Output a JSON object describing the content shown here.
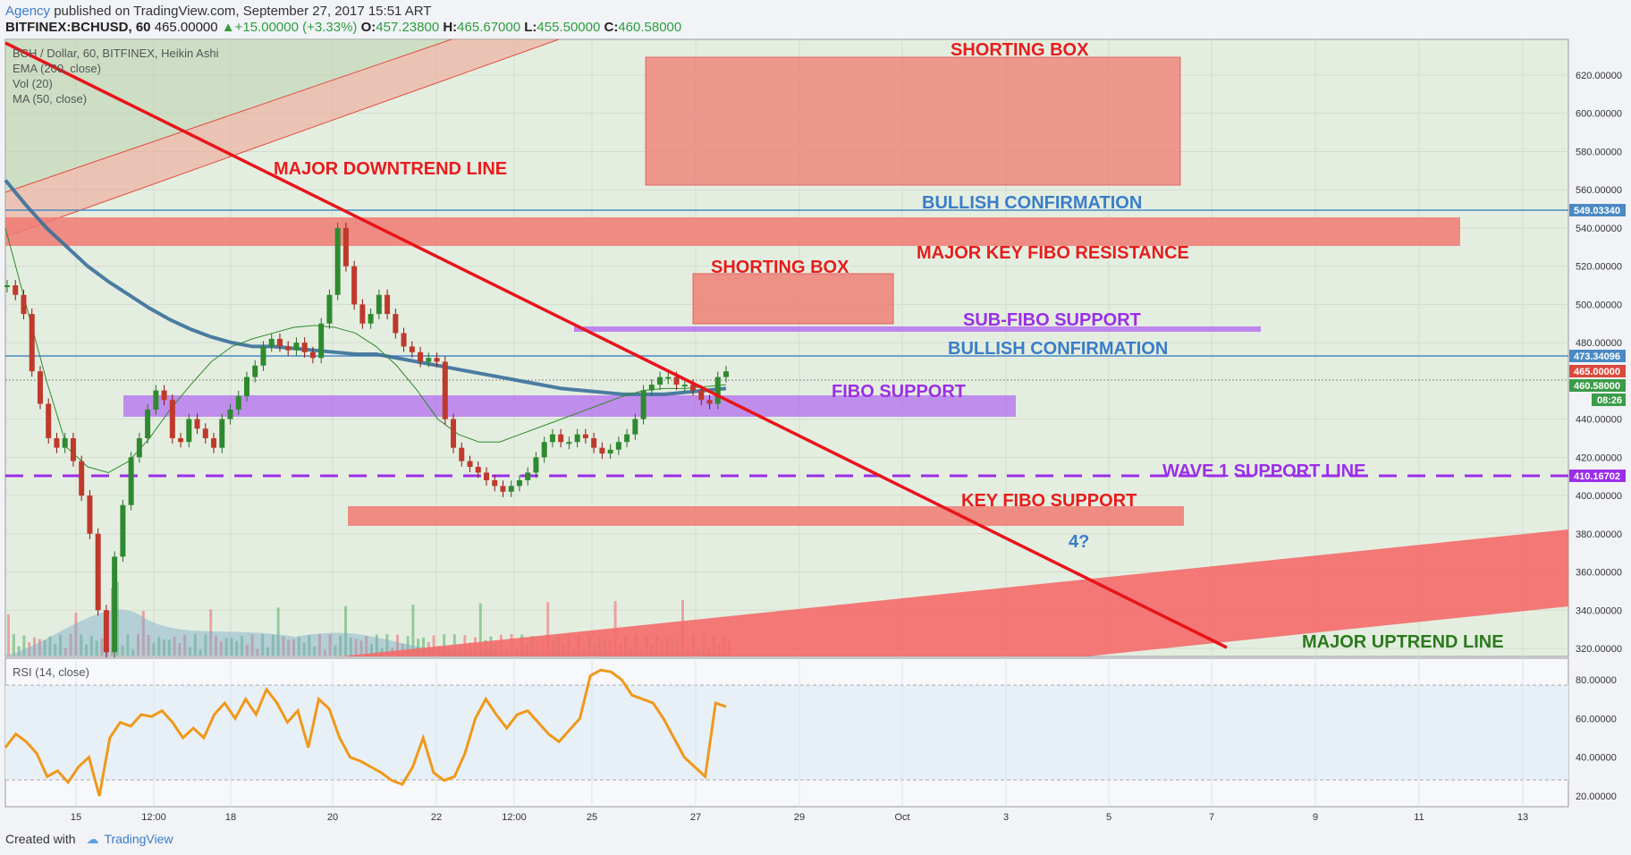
{
  "header": {
    "author": "Agency",
    "published": " published on TradingView.com, September 27, 2017 15:51 ART",
    "symbol": "BITFINEX:BCHUSD, 60",
    "price": "465.00000",
    "change": "+15.00000 (+3.33%)",
    "o_label": "O:",
    "o": "457.23800",
    "h_label": "H:",
    "h": "465.67000",
    "l_label": "L:",
    "l": "455.50000",
    "c_label": "C:",
    "c": "460.58000"
  },
  "legend": {
    "line1": "BCH / Dollar, 60, BITFINEX, Heikin Ashi",
    "line2": "EMA (200, close)",
    "line3": "Vol (20)",
    "line4": "MA (50, close)",
    "rsi": "RSI (14, close)"
  },
  "footer": {
    "created_with": "Created with",
    "brand": "TradingView"
  },
  "colors": {
    "bg_green": "#e4eee0",
    "bg_rsi": "#e8f0f7",
    "red_zone": "#f07a72",
    "red_line": "#e8141b",
    "purple": "#b36cf0",
    "blue_line": "#4a8ac4",
    "ema": "#3a6f9a",
    "ma": "#2f8a2f",
    "rsi_line": "#f0981a",
    "annotation_red": "#e81c1c",
    "annotation_purple": "#9b2ee8",
    "annotation_blue": "#3a7dc9",
    "annotation_green": "#2a7a1c"
  },
  "annotations": {
    "shorting_box_top": "SHORTING BOX",
    "major_downtrend": "MAJOR DOWNTREND LINE",
    "bullish_conf_1": "BULLISH CONFIRMATION",
    "major_key_fibo": "MAJOR KEY FIBO RESISTANCE",
    "shorting_box_mid": "SHORTING BOX",
    "sub_fibo": "SUB-FIBO SUPPORT",
    "bullish_conf_2": "BULLISH CONFIRMATION",
    "fibo_support": "FIBO SUPPORT",
    "wave1": "WAVE 1 SUPPORT LINE",
    "key_fibo_support": "KEY FIBO SUPPORT",
    "question": "4?",
    "major_uptrend": "MAJOR UPTREND LINE"
  },
  "price_tags": {
    "bull_high": "549.03340",
    "bull_low": "473.34096",
    "last_price": "465.00000",
    "close": "460.58000",
    "countdown": "08:26",
    "wave1": "410.16702"
  },
  "chart_data": {
    "type": "line",
    "title": "BCH / Dollar, 60, BITFINEX, Heikin Ashi",
    "y_axis": {
      "ticks": [
        "620.00000",
        "600.00000",
        "580.00000",
        "560.00000",
        "540.00000",
        "520.00000",
        "500.00000",
        "480.00000",
        "440.00000",
        "420.00000",
        "400.00000",
        "380.00000",
        "360.00000",
        "340.00000",
        "320.00000"
      ],
      "ylim": [
        316,
        640
      ]
    },
    "x_axis": {
      "ticks": [
        "15",
        "12:00",
        "18",
        "20",
        "22",
        "12:00",
        "25",
        "27",
        "29",
        "Oct",
        "3",
        "5",
        "7",
        "9",
        "11",
        "13"
      ]
    },
    "rsi_axis": {
      "ticks": [
        "80.00000",
        "60.00000",
        "40.00000",
        "20.00000"
      ],
      "ylim": [
        15,
        90
      ]
    },
    "series": [
      {
        "name": "BCH / Dollar",
        "values": [
          510,
          505,
          495,
          465,
          448,
          430,
          425,
          430,
          418,
          400,
          380,
          340,
          318,
          368,
          395,
          420,
          430,
          445,
          455,
          450,
          430,
          428,
          440,
          435,
          430,
          425,
          440,
          445,
          452,
          462,
          468,
          478,
          482,
          478,
          476,
          480,
          475,
          472,
          490,
          505,
          540,
          520,
          500,
          490,
          495,
          505,
          495,
          485,
          478,
          475,
          470,
          472,
          470,
          440,
          425,
          418,
          415,
          412,
          408,
          405,
          402,
          405,
          408,
          412,
          420,
          428,
          432,
          428,
          428,
          432,
          430,
          425,
          422,
          424,
          428,
          432,
          440,
          455,
          458,
          462,
          462,
          458,
          458,
          455,
          450,
          448,
          462,
          465
        ]
      },
      {
        "name": "EMA (200, close)",
        "values": [
          565,
          552,
          540,
          530,
          520,
          512,
          505,
          498,
          492,
          487,
          483,
          480,
          478,
          478,
          477,
          476,
          475,
          474,
          474,
          472,
          470,
          468,
          466,
          464,
          462,
          460,
          458,
          456,
          455,
          454,
          453,
          453,
          453,
          454,
          455,
          456
        ]
      },
      {
        "name": "MA (50, close)",
        "values": [
          540,
          500,
          460,
          425,
          415,
          412,
          418,
          430,
          445,
          458,
          470,
          478,
          482,
          485,
          488,
          489,
          488,
          485,
          478,
          468,
          455,
          440,
          432,
          428,
          428,
          432,
          436,
          440,
          444,
          448,
          452,
          455,
          456,
          456,
          457,
          458
        ]
      },
      {
        "name": "RSI (14, close)",
        "values": [
          45,
          52,
          48,
          42,
          30,
          33,
          27,
          35,
          40,
          20,
          50,
          58,
          56,
          62,
          61,
          64,
          58,
          50,
          55,
          50,
          62,
          68,
          60,
          70,
          62,
          75,
          68,
          58,
          64,
          45,
          70,
          65,
          50,
          40,
          38,
          35,
          32,
          28,
          26,
          35,
          50,
          32,
          28,
          30,
          42,
          60,
          70,
          62,
          55,
          62,
          64,
          58,
          52,
          48,
          54,
          60,
          82,
          85,
          84,
          80,
          72,
          70,
          68,
          60,
          50,
          40,
          35,
          30,
          68,
          66
        ]
      }
    ],
    "grid": true
  }
}
